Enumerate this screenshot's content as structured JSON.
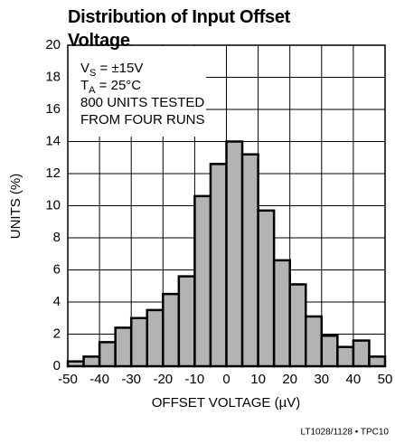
{
  "chart_data": {
    "type": "histogram",
    "title": "Distribution of Input Offset Voltage",
    "annotations": [
      {
        "text": "V",
        "sub": "S",
        "rest": " = ±15V"
      },
      {
        "text": "T",
        "sub": "A",
        "rest": " = 25°C"
      },
      {
        "text": "800 UNITS TESTED"
      },
      {
        "text": "FROM FOUR RUNS"
      }
    ],
    "xlabel": "OFFSET VOLTAGE (µV)",
    "ylabel": "UNITS (%)",
    "footnote": "LT1028/1128 • TPC10",
    "bins": [
      -50,
      -45,
      -40,
      -35,
      -30,
      -25,
      -20,
      -15,
      -10,
      -5,
      0,
      5,
      10,
      15,
      20,
      25,
      30,
      35,
      40,
      45,
      50
    ],
    "counts": [
      0.3,
      0.6,
      1.5,
      2.4,
      3.0,
      3.5,
      4.5,
      5.6,
      10.6,
      12.6,
      14.0,
      13.2,
      9.7,
      6.6,
      5.1,
      3.1,
      1.9,
      1.2,
      1.6,
      0.6
    ],
    "color": "#b3b3b3",
    "xlim": [
      -50,
      50
    ],
    "xticks": [
      -50,
      -40,
      -30,
      -20,
      -10,
      0,
      10,
      20,
      30,
      40,
      50
    ],
    "ylim": [
      0,
      20
    ],
    "yticks": [
      0,
      2,
      4,
      6,
      8,
      10,
      12,
      14,
      16,
      18,
      20
    ],
    "grid": true
  }
}
